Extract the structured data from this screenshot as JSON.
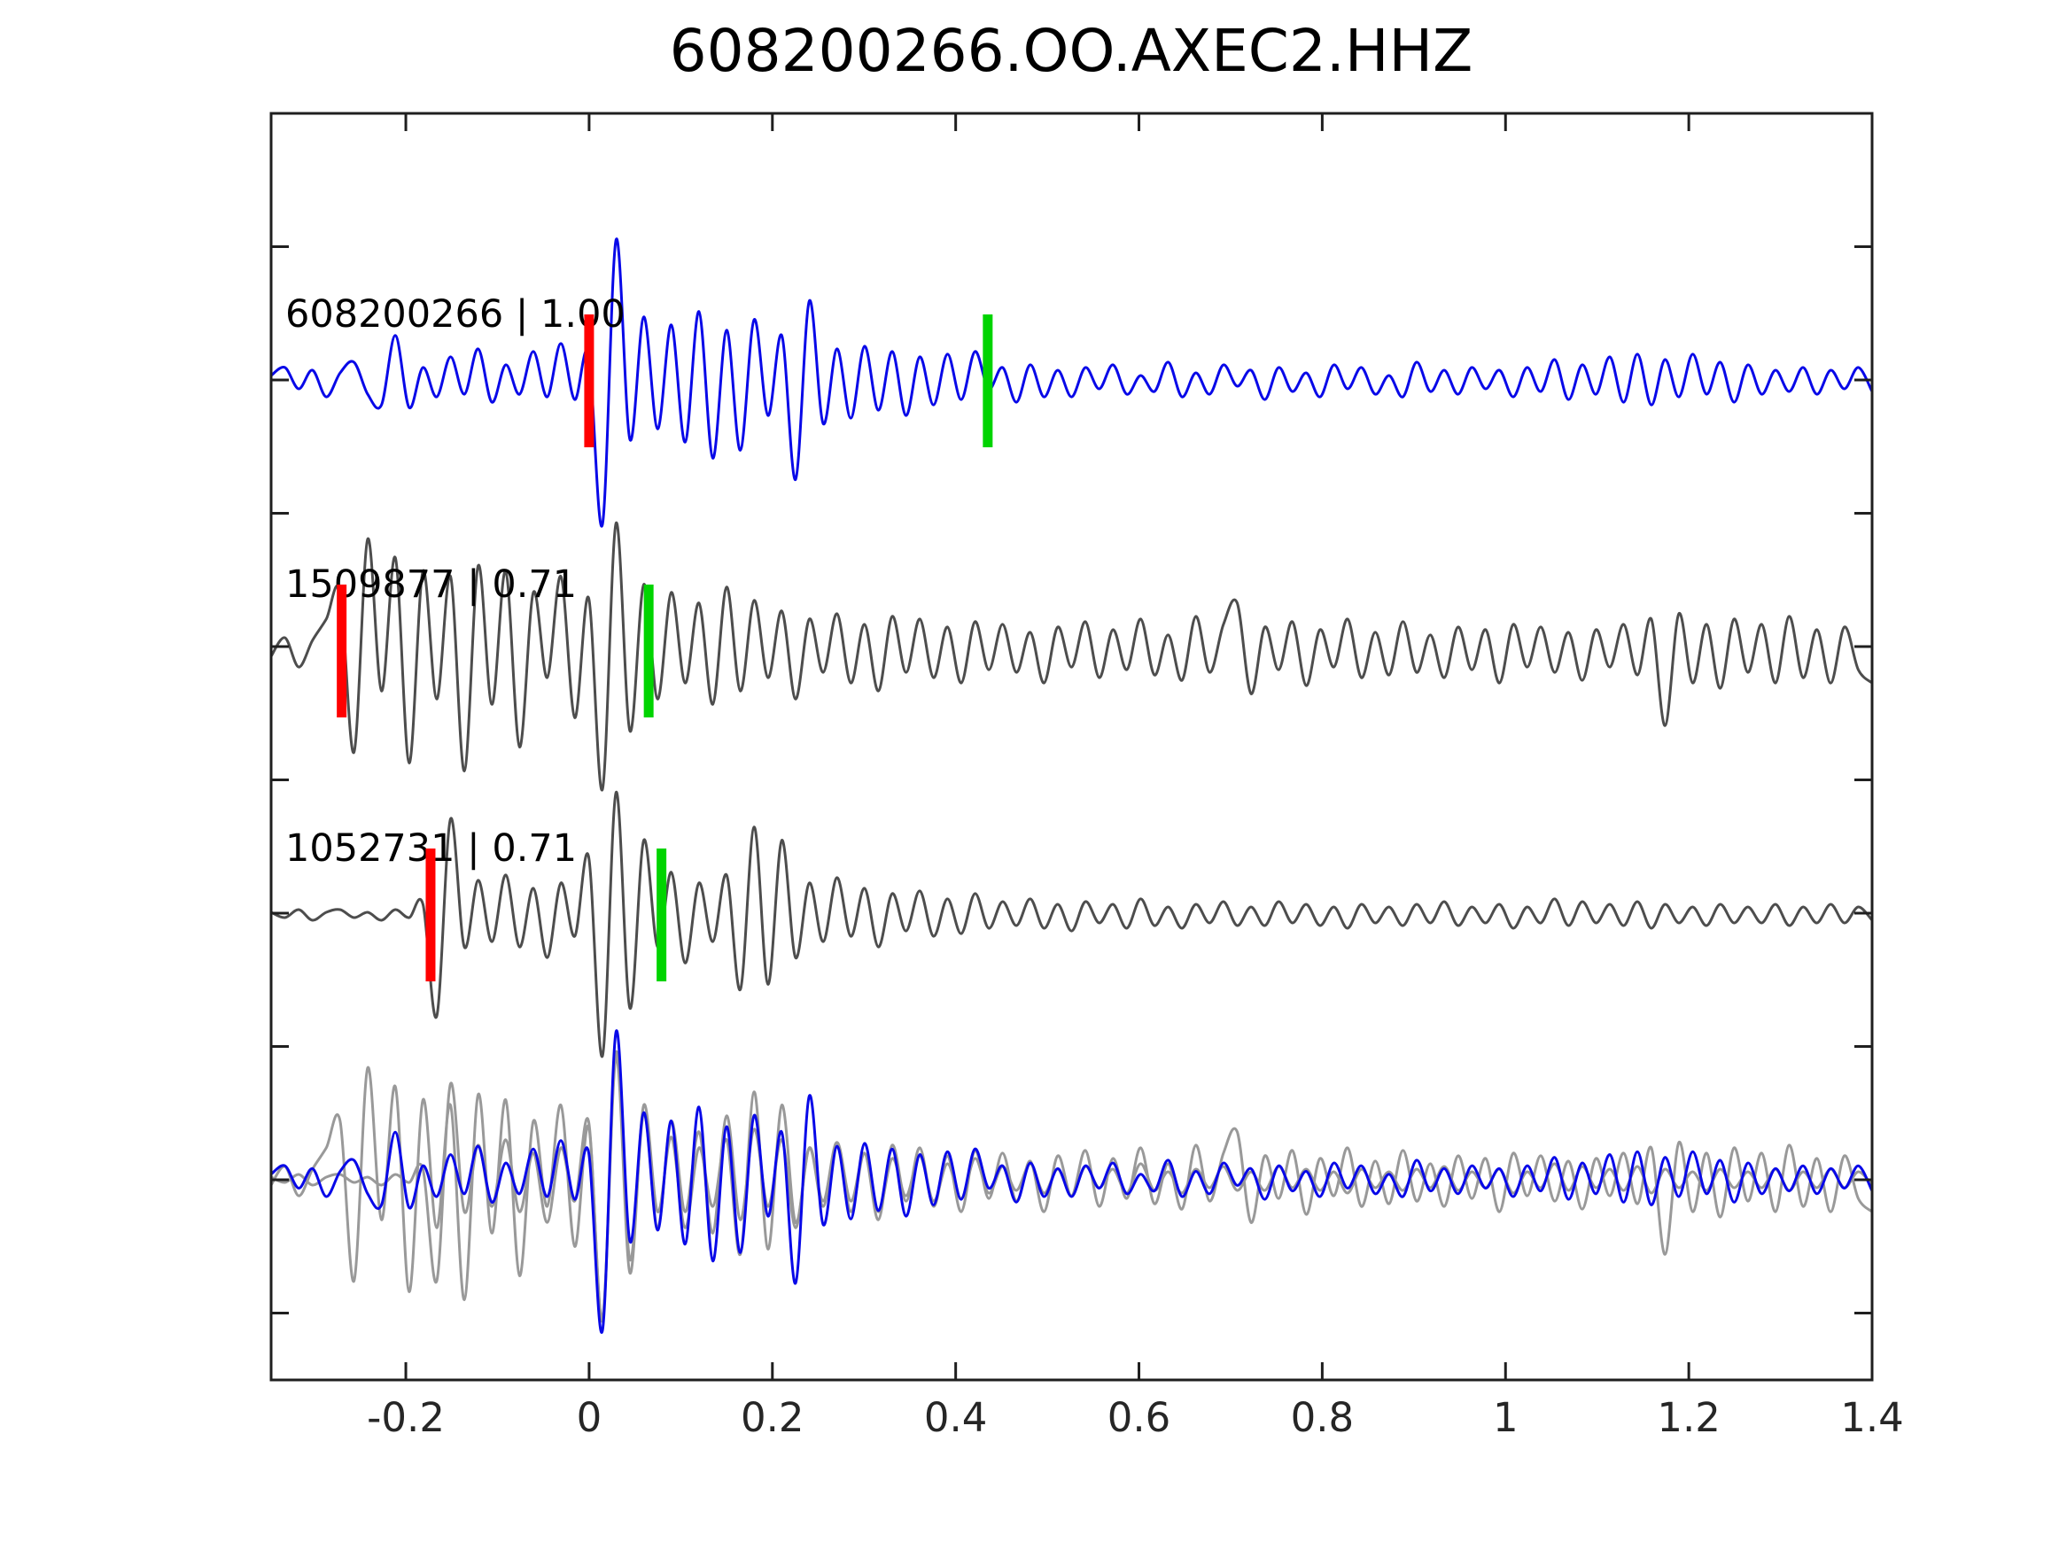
{
  "title": "608200266.OO.AXEC2.HHZ",
  "colors": {
    "background": "#ffffff",
    "axis": "#1f1f1f",
    "text": "#000000",
    "template": "#0808e8",
    "match": "#4d4d4d",
    "overlay_match": "#999999",
    "pick_red": "#ff0000",
    "pick_green": "#00d400"
  },
  "chart_data": {
    "type": "line",
    "title": "608200266.OO.AXEC2.HHZ",
    "xlabel": "",
    "ylabel": "",
    "x_range": [
      -0.347,
      1.4
    ],
    "grid": false,
    "legend": false,
    "x_ticks": {
      "values": [
        -0.2,
        0,
        0.2,
        0.4,
        0.6,
        0.8,
        1,
        1.2,
        1.4
      ],
      "labels": [
        "-0.2",
        "0",
        "0.2",
        "0.4",
        "0.6",
        "0.8",
        "1",
        "1.2",
        "1.4"
      ]
    },
    "y_ticks_unit_levels": [
      -0.5,
      0,
      0.5,
      1,
      1.5,
      2,
      2.5,
      3,
      3.5
    ],
    "sample_x_start": -0.347,
    "sample_x_step": 0.0150603,
    "amplitude_unit": "trace rows are offset by 1.0 unit; values are deviations from each row baseline",
    "series": [
      {
        "id": "608200266",
        "label": "608200266 | 1.00",
        "correlation": "1.00",
        "row": 0,
        "role": "template",
        "picks": {
          "red_x": 0.0,
          "green_x": 0.435
        },
        "values": [
          0.02,
          0.05,
          -0.03,
          0.04,
          -0.06,
          0.03,
          0.07,
          -0.05,
          -0.09,
          0.17,
          -0.1,
          0.05,
          -0.06,
          0.09,
          -0.05,
          0.12,
          -0.08,
          0.06,
          -0.05,
          0.11,
          -0.06,
          0.14,
          -0.07,
          0.1,
          -0.54,
          0.53,
          -0.22,
          0.24,
          -0.18,
          0.21,
          -0.23,
          0.26,
          -0.29,
          0.19,
          -0.26,
          0.23,
          -0.13,
          0.17,
          -0.37,
          0.3,
          -0.16,
          0.12,
          -0.14,
          0.13,
          -0.11,
          0.11,
          -0.13,
          0.09,
          -0.09,
          0.1,
          -0.07,
          0.11,
          -0.03,
          0.05,
          -0.08,
          0.06,
          -0.06,
          0.04,
          -0.06,
          0.05,
          -0.03,
          0.06,
          -0.05,
          0.02,
          -0.04,
          0.07,
          -0.06,
          0.03,
          -0.05,
          0.06,
          -0.02,
          0.04,
          -0.07,
          0.05,
          -0.04,
          0.03,
          -0.06,
          0.06,
          -0.03,
          0.05,
          -0.05,
          0.02,
          -0.06,
          0.07,
          -0.04,
          0.04,
          -0.05,
          0.05,
          -0.03,
          0.04,
          -0.06,
          0.05,
          -0.04,
          0.08,
          -0.07,
          0.06,
          -0.05,
          0.09,
          -0.08,
          0.1,
          -0.09,
          0.08,
          -0.06,
          0.1,
          -0.05,
          0.07,
          -0.08,
          0.06,
          -0.05,
          0.04,
          -0.04,
          0.05,
          -0.05,
          0.04,
          -0.03,
          0.05,
          -0.04
        ]
      },
      {
        "id": "1509877",
        "label": "1509877 | 0.71",
        "correlation": "0.71",
        "row": 1,
        "role": "match",
        "picks": {
          "red_x": -0.27,
          "green_x": 0.065
        },
        "values": [
          -0.02,
          0.05,
          -0.06,
          0.04,
          0.12,
          0.22,
          -0.38,
          0.42,
          -0.15,
          0.35,
          -0.42,
          0.3,
          -0.18,
          0.28,
          -0.45,
          0.32,
          -0.2,
          0.3,
          -0.36,
          0.22,
          -0.1,
          0.28,
          -0.25,
          0.2,
          -0.52,
          0.48,
          -0.3,
          0.25,
          -0.18,
          0.22,
          -0.12,
          0.18,
          -0.2,
          0.24,
          -0.15,
          0.19,
          -0.1,
          0.15,
          -0.18,
          0.12,
          -0.08,
          0.14,
          -0.12,
          0.1,
          -0.15,
          0.13,
          -0.08,
          0.12,
          -0.1,
          0.09,
          -0.12,
          0.11,
          -0.07,
          0.1,
          -0.08,
          0.07,
          -0.12,
          0.09,
          -0.06,
          0.11,
          -0.1,
          0.08,
          -0.07,
          0.12,
          -0.09,
          0.06,
          -0.11,
          0.13,
          -0.08,
          0.1,
          0.18,
          -0.16,
          0.09,
          -0.07,
          0.11,
          -0.13,
          0.08,
          -0.06,
          0.12,
          -0.1,
          0.07,
          -0.09,
          0.11,
          -0.08,
          0.06,
          -0.1,
          0.09,
          -0.07,
          0.08,
          -0.12,
          0.1,
          -0.06,
          0.09,
          -0.08,
          0.07,
          -0.11,
          0.08,
          -0.06,
          0.1,
          -0.09,
          0.12,
          -0.28,
          0.14,
          -0.12,
          0.1,
          -0.14,
          0.12,
          -0.08,
          0.1,
          -0.12,
          0.13,
          -0.1,
          0.08,
          -0.12,
          0.09,
          -0.07,
          -0.12
        ]
      },
      {
        "id": "1052731",
        "label": "1052731 | 0.71",
        "correlation": "0.71",
        "row": 2,
        "role": "match",
        "picks": {
          "red_x": -0.173,
          "green_x": 0.079
        },
        "values": [
          0.01,
          -0.01,
          0.02,
          -0.02,
          0.01,
          0.02,
          -0.01,
          0.01,
          -0.02,
          0.02,
          -0.01,
          0.04,
          -0.38,
          0.36,
          -0.12,
          0.13,
          -0.1,
          0.15,
          -0.12,
          0.1,
          -0.16,
          0.12,
          -0.08,
          0.22,
          -0.53,
          0.46,
          -0.35,
          0.28,
          -0.12,
          0.16,
          -0.18,
          0.12,
          -0.1,
          0.15,
          -0.28,
          0.33,
          -0.26,
          0.28,
          -0.16,
          0.12,
          -0.1,
          0.14,
          -0.08,
          0.1,
          -0.12,
          0.08,
          -0.06,
          0.09,
          -0.08,
          0.06,
          -0.07,
          0.08,
          -0.05,
          0.05,
          -0.04,
          0.06,
          -0.05,
          0.04,
          -0.06,
          0.05,
          -0.03,
          0.04,
          -0.05,
          0.06,
          -0.04,
          0.03,
          -0.05,
          0.04,
          -0.03,
          0.05,
          -0.04,
          0.03,
          -0.04,
          0.05,
          -0.03,
          0.04,
          -0.04,
          0.03,
          -0.05,
          0.04,
          -0.03,
          0.03,
          -0.04,
          0.04,
          -0.03,
          0.05,
          -0.04,
          0.03,
          -0.03,
          0.04,
          -0.05,
          0.03,
          -0.03,
          0.06,
          -0.04,
          0.05,
          -0.03,
          0.04,
          -0.04,
          0.05,
          -0.05,
          0.04,
          -0.03,
          0.03,
          -0.04,
          0.04,
          -0.03,
          0.03,
          -0.03,
          0.04,
          -0.04,
          0.03,
          -0.03,
          0.04,
          -0.03,
          0.03,
          -0.02
        ]
      }
    ],
    "overlay": {
      "row": 3,
      "description": "aligned superposition of matches (gray) and template (blue)",
      "members": [
        {
          "series_index": 1,
          "role": "overlay_match",
          "scale": 1.0
        },
        {
          "series_index": 2,
          "role": "overlay_match",
          "scale": 1.0
        },
        {
          "series_index": 0,
          "role": "template",
          "scale": 1.05
        }
      ]
    }
  }
}
